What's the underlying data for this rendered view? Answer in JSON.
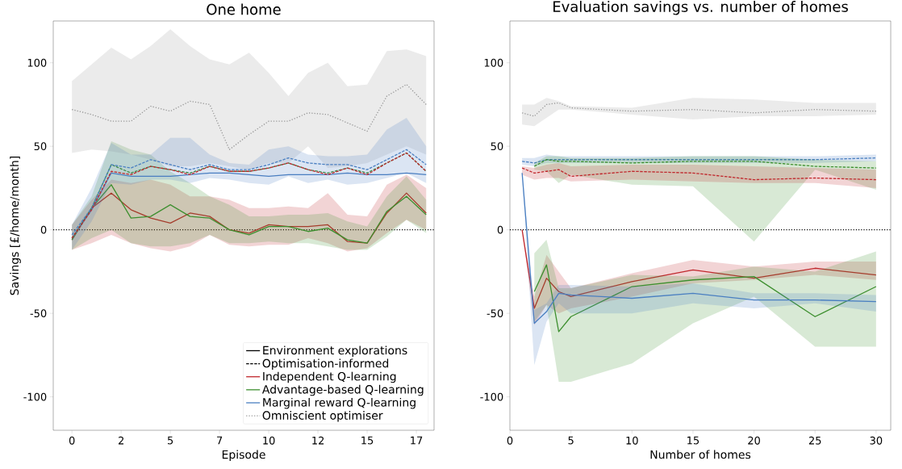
{
  "chart_data": [
    {
      "type": "line",
      "title": "One home",
      "xlabel": "Episode",
      "ylabel": "Savings [£/home/month]",
      "xlim": [
        -0.95,
        18.4
      ],
      "ylim": [
        -120,
        125
      ],
      "xticks": [
        {
          "value": 0,
          "label": "0"
        },
        {
          "value": 2.5,
          "label": "2"
        },
        {
          "value": 5,
          "label": "5"
        },
        {
          "value": 7.5,
          "label": "7"
        },
        {
          "value": 10,
          "label": "10"
        },
        {
          "value": 12.5,
          "label": "12"
        },
        {
          "value": 15,
          "label": "15"
        },
        {
          "value": 17.5,
          "label": "17"
        }
      ],
      "yticks": [
        -100,
        -50,
        0,
        50,
        100
      ],
      "legend": "bottom right",
      "ref_lines": [
        {
          "axis": "y",
          "value": 0,
          "color": "#000000",
          "line_style": "dotted"
        }
      ],
      "series": [
        {
          "name": "Environment explorations",
          "color": "#000000",
          "line_style": "solid"
        },
        {
          "name": "Optimisation-informed",
          "color": "#000000",
          "line_style": "dashed"
        },
        {
          "name": "Independent Q-learning",
          "color": "#c0282d",
          "line_style": "solid",
          "x": [
            0,
            1,
            2,
            3,
            4,
            5,
            6,
            7,
            8,
            9,
            10,
            11,
            12,
            13,
            14,
            15,
            16,
            17,
            18
          ],
          "values": [
            -6,
            13,
            22,
            12,
            7,
            4,
            10,
            8,
            0,
            -2,
            3,
            2,
            2,
            3,
            -7,
            -8,
            10,
            22,
            10
          ],
          "upper": [
            3,
            18,
            30,
            28,
            30,
            27,
            20,
            20,
            18,
            13,
            13,
            14,
            13,
            22,
            9,
            8,
            27,
            33,
            25
          ],
          "lower": [
            -12,
            -8,
            -3,
            -8,
            -11,
            -13,
            -10,
            -3,
            -9,
            -10,
            -9,
            -9,
            -5,
            -8,
            -13,
            -11,
            -2,
            6,
            0
          ]
        },
        {
          "name": "Advantage-based Q-learning",
          "color": "#3d8f2f",
          "line_style": "solid",
          "x": [
            0,
            1,
            2,
            3,
            4,
            5,
            6,
            7,
            8,
            9,
            10,
            11,
            12,
            13,
            14,
            15,
            16,
            17,
            18
          ],
          "values": [
            -6,
            13,
            27,
            7,
            8,
            15,
            8,
            7,
            0,
            -3,
            2,
            2,
            -1,
            1,
            -6,
            -8,
            11,
            20,
            9
          ],
          "upper": [
            3,
            20,
            53,
            48,
            45,
            35,
            28,
            20,
            15,
            8,
            8,
            9,
            9,
            10,
            5,
            2,
            20,
            32,
            18
          ],
          "lower": [
            -12,
            -5,
            0,
            -8,
            -10,
            -10,
            -8,
            -3,
            -8,
            -8,
            -7,
            -8,
            -8,
            -10,
            -12,
            -12,
            -4,
            6,
            -2
          ]
        },
        {
          "name": "Marginal reward Q-learning",
          "color": "#4a7fc1",
          "line_style": "solid",
          "x": [
            0,
            1,
            2,
            3,
            4,
            5,
            6,
            7,
            8,
            9,
            10,
            11,
            12,
            13,
            14,
            15,
            16,
            17,
            18
          ],
          "values": [
            -5,
            12,
            34,
            32,
            32,
            32,
            33,
            34,
            34,
            33,
            32,
            33,
            33,
            33,
            34,
            33,
            33,
            34,
            33
          ]
        },
        {
          "name": "Omniscient optimiser",
          "color": "#999999",
          "line_style": "dotted",
          "x": [
            0,
            1,
            2,
            3,
            4,
            5,
            6,
            7,
            8,
            9,
            10,
            11,
            12,
            13,
            14,
            15,
            16,
            17,
            18
          ],
          "values": [
            72,
            69,
            65,
            65,
            74,
            71,
            77,
            75,
            48,
            57,
            65,
            65,
            70,
            69,
            64,
            59,
            80,
            87,
            75
          ],
          "upper": [
            89,
            99,
            109,
            102,
            110,
            120,
            110,
            102,
            99,
            106,
            94,
            80,
            94,
            100,
            86,
            87,
            107,
            108,
            104
          ],
          "lower": [
            46,
            48,
            47,
            45,
            42,
            38,
            38,
            40,
            38,
            36,
            40,
            40,
            50,
            37,
            38,
            40,
            45,
            50,
            45
          ]
        },
        {
          "color": "#3d8f2f",
          "line_style": "dashed",
          "x": [
            0,
            1,
            2,
            3,
            4,
            5,
            6,
            7,
            8,
            9,
            10,
            11,
            12,
            13,
            14,
            15,
            16,
            17,
            18
          ],
          "values": [
            -5,
            13,
            39,
            34,
            38,
            36,
            34,
            38,
            35,
            35,
            37,
            40,
            36,
            34,
            37,
            34,
            40,
            46,
            35
          ]
        },
        {
          "color": "#4a7fc1",
          "line_style": "dashed",
          "x": [
            0,
            1,
            2,
            3,
            4,
            5,
            6,
            7,
            8,
            9,
            10,
            11,
            12,
            13,
            14,
            15,
            16,
            17,
            18
          ],
          "values": [
            -3,
            13,
            39,
            37,
            42,
            39,
            36,
            39,
            36,
            36,
            39,
            43,
            40,
            39,
            39,
            36,
            42,
            48,
            39
          ],
          "upper": [
            3,
            25,
            52,
            45,
            45,
            55,
            55,
            45,
            40,
            39,
            48,
            50,
            45,
            44,
            44,
            45,
            60,
            67,
            50
          ],
          "lower": [
            -12,
            5,
            28,
            27,
            30,
            30,
            28,
            31,
            30,
            28,
            27,
            32,
            28,
            30,
            27,
            28,
            31,
            34,
            28
          ]
        },
        {
          "color": "#c0282d",
          "line_style": "dashed",
          "x": [
            0,
            1,
            2,
            3,
            4,
            5,
            6,
            7,
            8,
            9,
            10,
            11,
            12,
            13,
            14,
            15,
            16,
            17,
            18
          ],
          "values": [
            -5,
            12,
            35,
            33,
            38,
            36,
            33,
            38,
            35,
            35,
            37,
            40,
            36,
            33,
            37,
            33,
            40,
            46,
            35
          ]
        }
      ]
    },
    {
      "type": "line",
      "title": "Evaluation savings vs. number of homes",
      "xlabel": "Number of homes",
      "xlim": [
        0,
        31.2
      ],
      "ylim": [
        -120,
        125
      ],
      "xticks": [
        0,
        5,
        10,
        15,
        20,
        25,
        30
      ],
      "yticks": [
        -100,
        -50,
        0,
        50,
        100
      ],
      "ref_lines": [
        {
          "axis": "y",
          "value": 0,
          "color": "#000000",
          "line_style": "dotted"
        }
      ],
      "series": [
        {
          "color": "#999999",
          "line_style": "dotted",
          "x": [
            1,
            2,
            3,
            4,
            5,
            10,
            15,
            20,
            25,
            30
          ],
          "values": [
            70,
            68,
            75,
            76,
            73,
            71,
            72,
            70,
            72,
            71
          ],
          "upper": [
            75,
            75,
            79,
            77,
            74,
            73,
            79,
            78,
            76,
            76
          ],
          "lower": [
            63,
            62,
            67,
            72,
            72,
            69,
            66,
            68,
            68,
            69
          ]
        },
        {
          "color": "#4a7fc1",
          "line_style": "dashed",
          "x": [
            1,
            2,
            3,
            4,
            5,
            10,
            15,
            20,
            25,
            30
          ],
          "values": [
            41,
            40,
            42,
            42,
            42,
            42,
            42,
            42,
            42,
            43
          ],
          "upper": [
            43,
            43,
            45,
            44,
            44,
            44,
            44,
            44,
            44,
            45
          ],
          "lower": [
            39,
            38,
            40,
            40,
            40,
            40,
            40,
            40,
            40,
            41
          ]
        },
        {
          "color": "#3d8f2f",
          "line_style": "dashed",
          "x": [
            2,
            3,
            4,
            5,
            10,
            15,
            20,
            25,
            30
          ],
          "values": [
            38,
            42,
            41,
            41,
            40,
            41,
            41,
            38,
            37
          ],
          "upper": [
            40,
            44,
            44,
            43,
            43,
            44,
            44,
            42,
            41
          ],
          "lower": [
            36,
            35,
            28,
            33,
            27,
            26,
            -7,
            36,
            24
          ]
        },
        {
          "color": "#c0282d",
          "line_style": "dashed",
          "x": [
            1,
            2,
            3,
            4,
            5,
            10,
            15,
            20,
            25,
            30
          ],
          "values": [
            37,
            34,
            35,
            36,
            32,
            35,
            34,
            30,
            31,
            30
          ],
          "upper": [
            38,
            37,
            39,
            40,
            38,
            39,
            39,
            38,
            37,
            36
          ],
          "lower": [
            33,
            30,
            31,
            31,
            29,
            30,
            29,
            28,
            28,
            25
          ]
        },
        {
          "color": "#c0282d",
          "line_style": "solid",
          "x": [
            1,
            2,
            3,
            4,
            5,
            10,
            15,
            20,
            25,
            30
          ],
          "values": [
            0,
            -47,
            -29,
            -37,
            -40,
            -31,
            -24,
            -29,
            -23,
            -27
          ],
          "upper": [
            0,
            -40,
            -15,
            -25,
            -35,
            -26,
            -18,
            -22,
            -19,
            -19
          ],
          "lower": [
            0,
            -57,
            -45,
            -50,
            -47,
            -40,
            -32,
            -30,
            -27,
            -30
          ]
        },
        {
          "color": "#3d8f2f",
          "line_style": "solid",
          "x": [
            2,
            3,
            4,
            5,
            10,
            15,
            20,
            25,
            30
          ],
          "values": [
            -37,
            -21,
            -61,
            -52,
            -34,
            -30,
            -28,
            -52,
            -34
          ],
          "upper": [
            -14,
            -6,
            -35,
            -35,
            -27,
            -28,
            -22,
            -25,
            -13
          ],
          "lower": [
            -55,
            -45,
            -91,
            -91,
            -80,
            -56,
            -40,
            -70,
            -70
          ]
        },
        {
          "color": "#4a7fc1",
          "line_style": "solid",
          "x": [
            1,
            2,
            3,
            4,
            5,
            10,
            15,
            20,
            25,
            30
          ],
          "values": [
            34,
            -56,
            -49,
            -38,
            -39,
            -41,
            -38,
            -42,
            -42,
            -43
          ],
          "upper": [
            36,
            -48,
            -44,
            -33,
            -33,
            -34,
            -32,
            -38,
            -38,
            -39
          ],
          "lower": [
            33,
            -81,
            -55,
            -44,
            -50,
            -50,
            -44,
            -47,
            -44,
            -49
          ]
        }
      ]
    }
  ]
}
